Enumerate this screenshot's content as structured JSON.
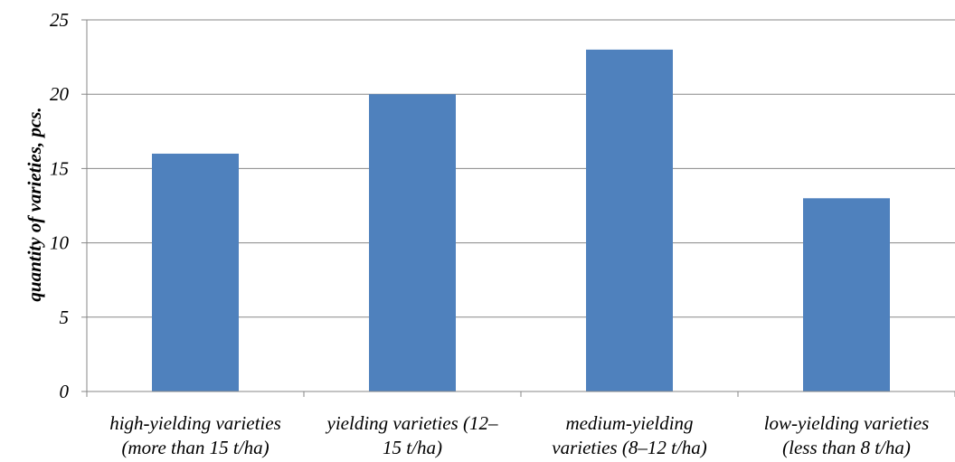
{
  "chart_data": {
    "type": "bar",
    "categories": [
      [
        "high-yielding varieties",
        "(more than 15 t/ha)"
      ],
      [
        "yielding varieties (12–",
        "15 t/ha)"
      ],
      [
        "medium-yielding",
        "varieties (8–12 t/ha)"
      ],
      [
        "low-yielding varieties",
        "(less than 8 t/ha)"
      ]
    ],
    "values": [
      16,
      20,
      23,
      13
    ],
    "ylabel": "quantity of varieties, pcs.",
    "xlabel": "",
    "ylim": [
      0,
      25
    ],
    "yticks": [
      0,
      5,
      10,
      15,
      20,
      25
    ],
    "grid": true,
    "colors": {
      "bar": "#4F81BD",
      "grid": "#878787",
      "axis": "#878787"
    }
  }
}
